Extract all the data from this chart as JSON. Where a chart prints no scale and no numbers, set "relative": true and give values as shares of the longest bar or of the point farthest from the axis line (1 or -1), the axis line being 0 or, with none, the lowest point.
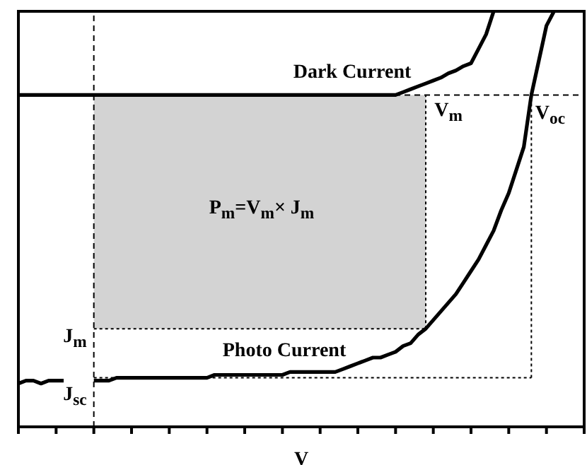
{
  "chart_data": {
    "type": "line",
    "relative": true,
    "xlabel": "V",
    "marker": "none",
    "categories": [
      null,
      null,
      null,
      null,
      null,
      null,
      null,
      null,
      null,
      null,
      null,
      null,
      null,
      null,
      null,
      null,
      null,
      null,
      null,
      null,
      null,
      null,
      null,
      null,
      null,
      null,
      null,
      null,
      null,
      null,
      null,
      null,
      null,
      null,
      null,
      null,
      null,
      null,
      null,
      null,
      null,
      null,
      null,
      null,
      null,
      null,
      null,
      null,
      null,
      null,
      null,
      null,
      null,
      null,
      null,
      null,
      null,
      null,
      null,
      null,
      null,
      null,
      null,
      null,
      null,
      null,
      null,
      null,
      null,
      null,
      null,
      null,
      null,
      null,
      null,
      null
    ],
    "series": [
      {
        "type": "area",
        "color": "#d3d3d3",
        "line_style": "dotted",
        "values": [
          null,
          null,
          null,
          null,
          null,
          null,
          null,
          null,
          null,
          null,
          -0.81,
          -0.81,
          -0.81,
          -0.81,
          -0.81,
          -0.81,
          -0.81,
          -0.81,
          -0.81,
          -0.81,
          -0.81,
          -0.81,
          -0.81,
          -0.81,
          -0.81,
          -0.81,
          -0.81,
          -0.81,
          -0.81,
          -0.81,
          -0.81,
          -0.81,
          -0.81,
          -0.81,
          -0.81,
          -0.81,
          -0.81,
          -0.81,
          -0.81,
          -0.81,
          -0.81,
          -0.81,
          -0.81,
          -0.81,
          -0.81,
          -0.81,
          -0.81,
          -0.81,
          -0.81,
          -0.81,
          -0.81,
          -0.81,
          -0.81,
          -0.81,
          -0.81,
          null,
          null,
          null,
          null,
          null,
          null,
          null,
          null,
          null,
          null,
          null,
          null,
          null,
          null,
          null,
          null,
          null,
          null,
          null,
          null,
          null
        ]
      },
      {
        "color": "#000000",
        "line_style": "dotted",
        "values": [
          null,
          null,
          null,
          null,
          null,
          null,
          null,
          null,
          null,
          null,
          -0.98,
          -0.98,
          -0.98,
          -0.98,
          -0.98,
          -0.98,
          -0.98,
          -0.98,
          -0.98,
          -0.98,
          -0.98,
          -0.98,
          -0.98,
          -0.98,
          -0.98,
          -0.98,
          -0.98,
          -0.98,
          -0.98,
          -0.98,
          -0.98,
          -0.98,
          -0.98,
          -0.98,
          -0.98,
          -0.98,
          -0.98,
          -0.98,
          -0.98,
          -0.98,
          -0.98,
          -0.98,
          -0.98,
          -0.98,
          -0.98,
          -0.98,
          -0.98,
          -0.98,
          -0.98,
          -0.98,
          -0.98,
          -0.98,
          -0.98,
          -0.98,
          -0.98,
          -0.98,
          -0.98,
          -0.98,
          -0.98,
          -0.98,
          -0.98,
          -0.98,
          -0.98,
          -0.98,
          -0.98,
          -0.98,
          -0.98,
          -0.98,
          -0.98,
          null,
          null,
          null,
          null,
          null,
          null,
          null
        ]
      },
      {
        "color": "#000000",
        "line_style": "solid",
        "values": [
          0,
          0,
          0,
          0,
          0,
          0,
          0,
          0,
          0,
          0,
          0,
          0,
          0,
          0,
          0,
          0,
          0,
          0,
          0,
          0,
          0,
          0,
          0,
          0,
          0,
          0,
          0,
          0,
          0,
          0,
          0,
          0,
          0,
          0,
          0,
          0,
          0,
          0,
          0,
          0,
          0,
          0,
          0,
          0,
          0,
          0,
          0,
          0,
          0,
          0,
          0,
          0.01,
          0.02,
          0.03,
          0.04,
          0.05,
          0.06,
          0.075,
          0.085,
          0.1,
          0.11,
          0.16,
          0.21,
          0.29,
          null,
          null,
          null,
          null,
          null,
          null,
          null,
          null,
          null,
          null,
          null,
          null
        ]
      },
      {
        "color": "#000000",
        "line_style": "solid",
        "values": [
          -1,
          -0.99,
          -0.99,
          -1,
          -0.99,
          -0.99,
          -0.99,
          null,
          null,
          null,
          -0.99,
          -0.99,
          -0.99,
          -0.98,
          -0.98,
          -0.98,
          -0.98,
          -0.98,
          -0.98,
          -0.98,
          -0.98,
          -0.98,
          -0.98,
          -0.98,
          -0.98,
          -0.98,
          -0.97,
          -0.97,
          -0.97,
          -0.97,
          -0.97,
          -0.97,
          -0.97,
          -0.97,
          -0.97,
          -0.97,
          -0.96,
          -0.96,
          -0.96,
          -0.96,
          -0.96,
          -0.96,
          -0.96,
          -0.95,
          -0.94,
          -0.93,
          -0.92,
          -0.91,
          -0.91,
          -0.9,
          -0.89,
          -0.87,
          -0.86,
          -0.83,
          -0.81,
          -0.78,
          -0.75,
          -0.72,
          -0.69,
          -0.65,
          -0.61,
          -0.57,
          -0.52,
          -0.47,
          -0.4,
          -0.34,
          -0.26,
          -0.18,
          0,
          0.12,
          0.24,
          0.29,
          null,
          null,
          null,
          null
        ]
      }
    ],
    "ref_lines": [
      {
        "axis": "y",
        "value": 0,
        "line_style": "dashed",
        "color": "#000000"
      }
    ],
    "annotations": [
      "Dark Current",
      "Photo Current",
      "P$_{m}$=V$_{m}$× J$_{m}$",
      "V$_{m}$",
      "V$_{oc}$",
      "J$_{m}$",
      "J$_{sc}$"
    ]
  }
}
